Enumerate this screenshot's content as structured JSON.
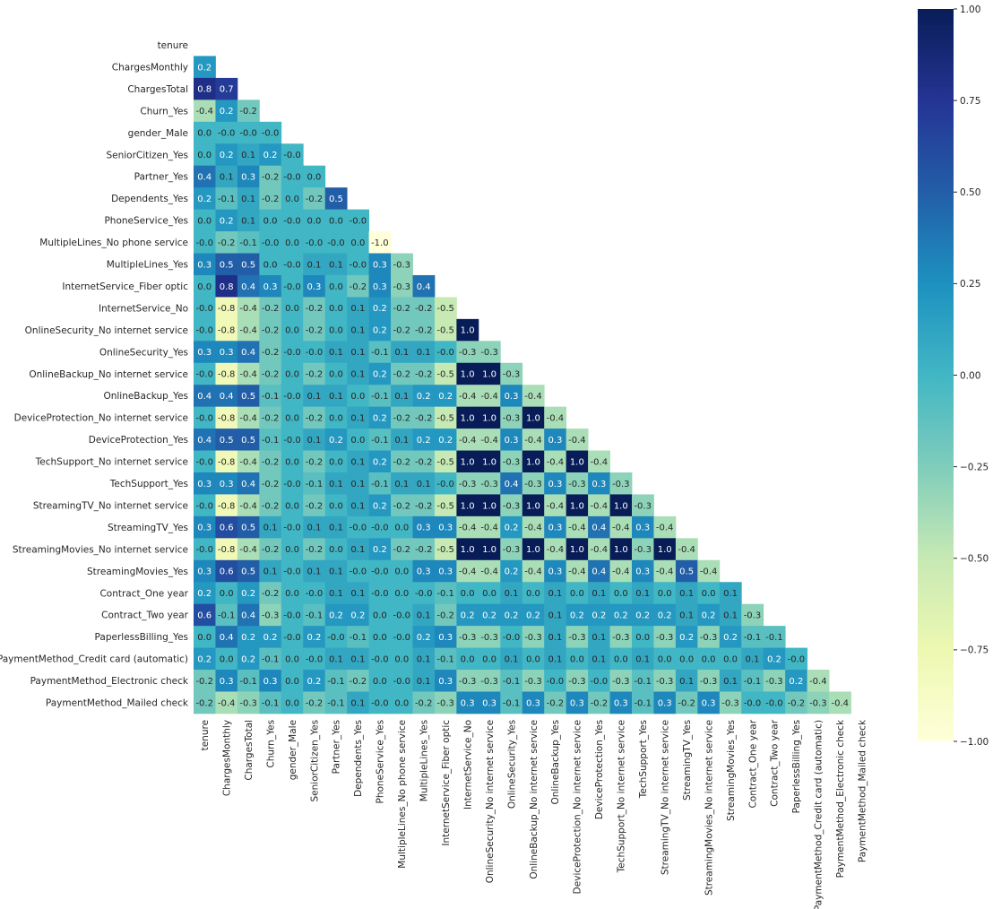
{
  "chart_data": {
    "type": "heatmap",
    "title": "",
    "xlabel": "",
    "ylabel": "",
    "mask": "upper-triangle",
    "variables": [
      "tenure",
      "ChargesMonthly",
      "ChargesTotal",
      "Churn_Yes",
      "gender_Male",
      "SeniorCitizen_Yes",
      "Partner_Yes",
      "Dependents_Yes",
      "PhoneService_Yes",
      "MultipleLines_No phone service",
      "MultipleLines_Yes",
      "InternetService_Fiber optic",
      "InternetService_No",
      "OnlineSecurity_No internet service",
      "OnlineSecurity_Yes",
      "OnlineBackup_No internet service",
      "OnlineBackup_Yes",
      "DeviceProtection_No internet service",
      "DeviceProtection_Yes",
      "TechSupport_No internet service",
      "TechSupport_Yes",
      "StreamingTV_No internet service",
      "StreamingTV_Yes",
      "StreamingMovies_No internet service",
      "StreamingMovies_Yes",
      "Contract_One year",
      "Contract_Two year",
      "PaperlessBilling_Yes",
      "PaymentMethod_Credit card (automatic)",
      "PaymentMethod_Electronic check",
      "PaymentMethod_Mailed check"
    ],
    "values": [
      [],
      [
        0.2
      ],
      [
        0.8,
        0.7
      ],
      [
        -0.4,
        0.2,
        -0.2
      ],
      [
        0.0,
        -0.0,
        -0.0,
        -0.0
      ],
      [
        0.0,
        0.2,
        0.1,
        0.2,
        -0.0
      ],
      [
        0.4,
        0.1,
        0.3,
        -0.2,
        -0.0,
        0.0
      ],
      [
        0.2,
        -0.1,
        0.1,
        -0.2,
        0.0,
        -0.2,
        0.5
      ],
      [
        0.0,
        0.2,
        0.1,
        0.0,
        -0.0,
        0.0,
        0.0,
        -0.0
      ],
      [
        -0.0,
        -0.2,
        -0.1,
        -0.0,
        0.0,
        -0.0,
        -0.0,
        0.0,
        -1.0
      ],
      [
        0.3,
        0.5,
        0.5,
        0.0,
        -0.0,
        0.1,
        0.1,
        -0.0,
        0.3,
        -0.3
      ],
      [
        0.0,
        0.8,
        0.4,
        0.3,
        -0.0,
        0.3,
        0.0,
        -0.2,
        0.3,
        -0.3,
        0.4
      ],
      [
        -0.0,
        -0.8,
        -0.4,
        -0.2,
        0.0,
        -0.2,
        0.0,
        0.1,
        0.2,
        -0.2,
        -0.2,
        -0.5
      ],
      [
        -0.0,
        -0.8,
        -0.4,
        -0.2,
        0.0,
        -0.2,
        0.0,
        0.1,
        0.2,
        -0.2,
        -0.2,
        -0.5,
        1.0
      ],
      [
        0.3,
        0.3,
        0.4,
        -0.2,
        -0.0,
        -0.0,
        0.1,
        0.1,
        -0.1,
        0.1,
        0.1,
        -0.0,
        -0.3,
        -0.3
      ],
      [
        -0.0,
        -0.8,
        -0.4,
        -0.2,
        0.0,
        -0.2,
        0.0,
        0.1,
        0.2,
        -0.2,
        -0.2,
        -0.5,
        1.0,
        1.0,
        -0.3
      ],
      [
        0.4,
        0.4,
        0.5,
        -0.1,
        -0.0,
        0.1,
        0.1,
        0.0,
        -0.1,
        0.1,
        0.2,
        0.2,
        -0.4,
        -0.4,
        0.3,
        -0.4
      ],
      [
        -0.0,
        -0.8,
        -0.4,
        -0.2,
        0.0,
        -0.2,
        0.0,
        0.1,
        0.2,
        -0.2,
        -0.2,
        -0.5,
        1.0,
        1.0,
        -0.3,
        1.0,
        -0.4
      ],
      [
        0.4,
        0.5,
        0.5,
        -0.1,
        -0.0,
        0.1,
        0.2,
        0.0,
        -0.1,
        0.1,
        0.2,
        0.2,
        -0.4,
        -0.4,
        0.3,
        -0.4,
        0.3,
        -0.4
      ],
      [
        -0.0,
        -0.8,
        -0.4,
        -0.2,
        0.0,
        -0.2,
        0.0,
        0.1,
        0.2,
        -0.2,
        -0.2,
        -0.5,
        1.0,
        1.0,
        -0.3,
        1.0,
        -0.4,
        1.0,
        -0.4
      ],
      [
        0.3,
        0.3,
        0.4,
        -0.2,
        -0.0,
        -0.1,
        0.1,
        0.1,
        -0.1,
        0.1,
        0.1,
        -0.0,
        -0.3,
        -0.3,
        0.4,
        -0.3,
        0.3,
        -0.3,
        0.3,
        -0.3
      ],
      [
        -0.0,
        -0.8,
        -0.4,
        -0.2,
        0.0,
        -0.2,
        0.0,
        0.1,
        0.2,
        -0.2,
        -0.2,
        -0.5,
        1.0,
        1.0,
        -0.3,
        1.0,
        -0.4,
        1.0,
        -0.4,
        1.0,
        -0.3
      ],
      [
        0.3,
        0.6,
        0.5,
        0.1,
        -0.0,
        0.1,
        0.1,
        -0.0,
        -0.0,
        0.0,
        0.3,
        0.3,
        -0.4,
        -0.4,
        0.2,
        -0.4,
        0.3,
        -0.4,
        0.4,
        -0.4,
        0.3,
        -0.4
      ],
      [
        -0.0,
        -0.8,
        -0.4,
        -0.2,
        0.0,
        -0.2,
        0.0,
        0.1,
        0.2,
        -0.2,
        -0.2,
        -0.5,
        1.0,
        1.0,
        -0.3,
        1.0,
        -0.4,
        1.0,
        -0.4,
        1.0,
        -0.3,
        1.0,
        -0.4
      ],
      [
        0.3,
        0.6,
        0.5,
        0.1,
        -0.0,
        0.1,
        0.1,
        -0.0,
        -0.0,
        0.0,
        0.3,
        0.3,
        -0.4,
        -0.4,
        0.2,
        -0.4,
        0.3,
        -0.4,
        0.4,
        -0.4,
        0.3,
        -0.4,
        0.5,
        -0.4
      ],
      [
        0.2,
        0.0,
        0.2,
        -0.2,
        0.0,
        -0.0,
        0.1,
        0.1,
        -0.0,
        0.0,
        -0.0,
        -0.1,
        0.0,
        0.0,
        0.1,
        0.0,
        0.1,
        0.0,
        0.1,
        0.0,
        0.1,
        0.0,
        0.1,
        0.0,
        0.1
      ],
      [
        0.6,
        -0.1,
        0.4,
        -0.3,
        -0.0,
        -0.1,
        0.2,
        0.2,
        0.0,
        -0.0,
        0.1,
        -0.2,
        0.2,
        0.2,
        0.2,
        0.2,
        0.1,
        0.2,
        0.2,
        0.2,
        0.2,
        0.2,
        0.1,
        0.2,
        0.1,
        -0.3
      ],
      [
        0.0,
        0.4,
        0.2,
        0.2,
        -0.0,
        0.2,
        -0.0,
        -0.1,
        0.0,
        -0.0,
        0.2,
        0.3,
        -0.3,
        -0.3,
        -0.0,
        -0.3,
        0.1,
        -0.3,
        0.1,
        -0.3,
        0.0,
        -0.3,
        0.2,
        -0.3,
        0.2,
        -0.1,
        -0.1
      ],
      [
        0.2,
        0.0,
        0.2,
        -0.1,
        0.0,
        -0.0,
        0.1,
        0.1,
        -0.0,
        0.0,
        0.1,
        -0.1,
        0.0,
        0.0,
        0.1,
        0.0,
        0.1,
        0.0,
        0.1,
        0.0,
        0.1,
        0.0,
        0.0,
        0.0,
        0.0,
        0.1,
        0.2,
        -0.0
      ],
      [
        -0.2,
        0.3,
        -0.1,
        0.3,
        0.0,
        0.2,
        -0.1,
        -0.2,
        0.0,
        -0.0,
        0.1,
        0.3,
        -0.3,
        -0.3,
        -0.1,
        -0.3,
        -0.0,
        -0.3,
        -0.0,
        -0.3,
        -0.1,
        -0.3,
        0.1,
        -0.3,
        0.1,
        -0.1,
        -0.3,
        0.2,
        -0.4
      ],
      [
        -0.2,
        -0.4,
        -0.3,
        -0.1,
        0.0,
        -0.2,
        -0.1,
        0.1,
        -0.0,
        0.0,
        -0.2,
        -0.3,
        0.3,
        0.3,
        -0.1,
        0.3,
        -0.2,
        0.3,
        -0.2,
        0.3,
        -0.1,
        0.3,
        -0.2,
        0.3,
        -0.3,
        -0.0,
        -0.0,
        -0.2,
        -0.3,
        -0.4
      ]
    ],
    "colorbar": {
      "colormap": "YlGnBu",
      "vmin": -1.0,
      "vmax": 1.0,
      "ticks": [
        "1.00",
        "0.75",
        "0.50",
        "0.25",
        "0.00",
        "−0.25",
        "−0.50",
        "−0.75",
        "−1.00"
      ]
    },
    "colormap_stops": [
      "#ffffd9",
      "#edf8b1",
      "#c7e9b4",
      "#7fcdbb",
      "#41b6c4",
      "#1d91c0",
      "#225ea8",
      "#253494",
      "#081d58"
    ]
  }
}
